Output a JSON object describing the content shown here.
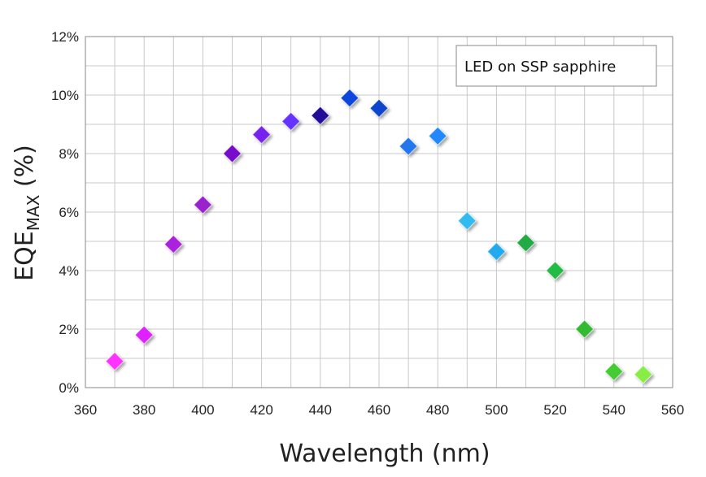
{
  "chart_data": {
    "type": "scatter",
    "xlabel": "Wavelength (nm)",
    "ylabel": {
      "main": "EQE",
      "subscript": "MAX",
      "suffix": " (%)"
    },
    "xlim": [
      360,
      560
    ],
    "ylim": [
      0,
      12
    ],
    "x_ticks": [
      "360",
      "380",
      "400",
      "420",
      "440",
      "460",
      "480",
      "500",
      "520",
      "540",
      "560"
    ],
    "y_ticks": [
      "0%",
      "2%",
      "4%",
      "6%",
      "8%",
      "10%",
      "12%"
    ],
    "grid": true,
    "legend": {
      "text": "LED on SSP sapphire",
      "placement": "top-right"
    },
    "marker": "diamond",
    "points": [
      {
        "x": 370,
        "y": 0.9,
        "color": "#ff33ff"
      },
      {
        "x": 380,
        "y": 1.8,
        "color": "#dd22ff"
      },
      {
        "x": 390,
        "y": 4.9,
        "color": "#aa22dd"
      },
      {
        "x": 400,
        "y": 6.25,
        "color": "#9922cc"
      },
      {
        "x": 410,
        "y": 8.0,
        "color": "#7711cc"
      },
      {
        "x": 420,
        "y": 8.65,
        "color": "#7722ee"
      },
      {
        "x": 430,
        "y": 9.1,
        "color": "#6633ff"
      },
      {
        "x": 440,
        "y": 9.3,
        "color": "#221199"
      },
      {
        "x": 450,
        "y": 9.9,
        "color": "#1144dd"
      },
      {
        "x": 460,
        "y": 9.55,
        "color": "#1144cc"
      },
      {
        "x": 470,
        "y": 8.25,
        "color": "#2277ee"
      },
      {
        "x": 480,
        "y": 8.6,
        "color": "#2288ff"
      },
      {
        "x": 490,
        "y": 5.7,
        "color": "#33bbee"
      },
      {
        "x": 500,
        "y": 4.65,
        "color": "#22aaee"
      },
      {
        "x": 510,
        "y": 4.95,
        "color": "#22aa44"
      },
      {
        "x": 520,
        "y": 4.0,
        "color": "#22bb44"
      },
      {
        "x": 530,
        "y": 2.0,
        "color": "#33bb33"
      },
      {
        "x": 540,
        "y": 0.55,
        "color": "#44cc33"
      },
      {
        "x": 550,
        "y": 0.45,
        "color": "#88ee44"
      }
    ]
  }
}
